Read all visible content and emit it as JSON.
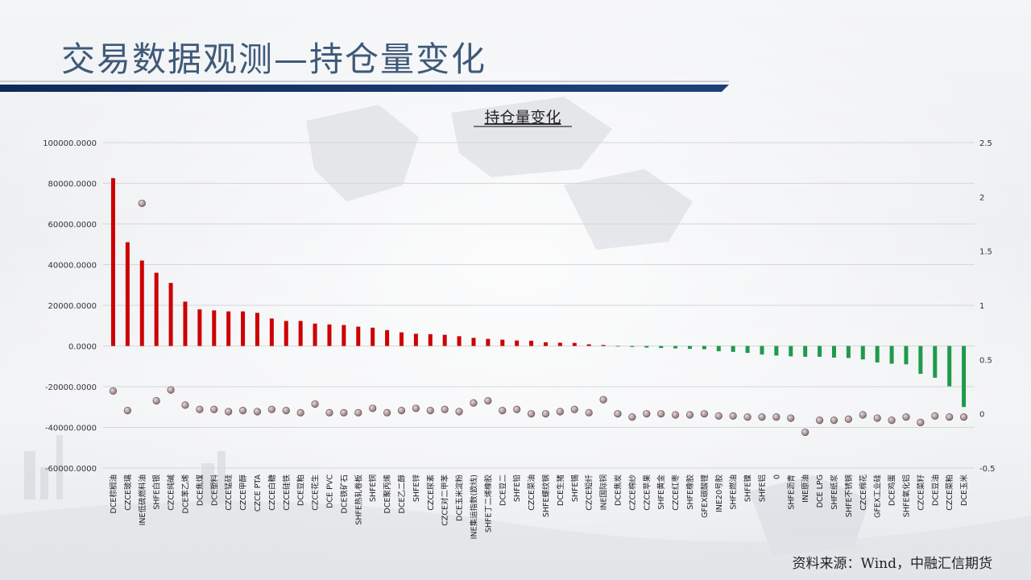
{
  "page": {
    "title": "交易数据观测—持仓量变化",
    "source": "资料来源：Wind，中融汇信期货"
  },
  "colors": {
    "positive_bar": "#cc0000",
    "negative_bar": "#1e9a4b",
    "dot": "#8c7576",
    "title_blue": "#3f5a78",
    "header_bar": "#13336a"
  },
  "chart_data": {
    "type": "bar",
    "title": "持仓量变化",
    "left_axis": {
      "min": -60000,
      "max": 100000,
      "step": 20000,
      "ticks": [
        "100000.0000",
        "80000.0000",
        "60000.0000",
        "40000.0000",
        "20000.0000",
        "0.0000",
        "-20000.0000",
        "-40000.0000",
        "-60000.0000"
      ]
    },
    "right_axis": {
      "min": -0.5,
      "max": 2.5,
      "step": 0.5,
      "ticks": [
        "2.5",
        "2",
        "1.5",
        "1",
        "0.5",
        "0",
        "-0.5"
      ]
    },
    "grid": true,
    "categories": [
      "DCE棕榈油",
      "CZCE玻璃",
      "INE低硫燃料油",
      "SHFE白银",
      "CZCE纯碱",
      "DCE苯乙烯",
      "DCE焦煤",
      "DCE塑料",
      "CZCE锰硅",
      "CZCE甲醇",
      "CZCE PTA",
      "CZCE白糖",
      "CZCE硅铁",
      "DCE豆粕",
      "CZCE花生",
      "DCE PVC",
      "DCE铁矿石",
      "SHFE热轧卷板",
      "SHFE铜",
      "DCE聚丙烯",
      "DCE乙二醇",
      "SHFE锌",
      "CZCE尿素",
      "CZCE对二甲苯",
      "DCE玉米淀粉",
      "INE集运指数(欧线)",
      "SHFE丁二烯橡胶",
      "DCE豆二",
      "SHFE铅",
      "CZCE菜油",
      "SHFE螺纹钢",
      "DCE生猪",
      "SHFE锡",
      "CZCE短纤",
      "INE国际铜",
      "DCE焦炭",
      "CZCE棉纱",
      "CZCE苹果",
      "SHFE黄金",
      "CZCE红枣",
      "SHFE橡胶",
      "GFEX碳酸锂",
      "INE20号胶",
      "SHFE燃油",
      "SHFE镍",
      "SHFE铝",
      "0",
      "SHFE沥青",
      "INE原油",
      "DCE LPG",
      "SHFE纸浆",
      "SHFE不锈钢",
      "CZCE棉花",
      "GFEX工业硅",
      "DCE鸡蛋",
      "SHFE氧化铝",
      "CZCE菜籽",
      "DCE豆油",
      "CZCE菜粕",
      "DCE玉米"
    ],
    "series": [
      {
        "name": "",
        "axis": "left",
        "type": "bar",
        "values": [
          82500,
          51000,
          42000,
          36000,
          31000,
          21800,
          18000,
          17500,
          17000,
          17000,
          16300,
          13500,
          12300,
          12300,
          11000,
          10600,
          10300,
          9500,
          9000,
          7800,
          6700,
          6000,
          5800,
          5500,
          4800,
          4000,
          3500,
          3100,
          2700,
          2600,
          1800,
          1600,
          1500,
          800,
          500,
          -300,
          -500,
          -800,
          -1000,
          -1200,
          -1400,
          -1600,
          -2600,
          -2900,
          -3400,
          -4200,
          -4700,
          -5100,
          -5300,
          -5300,
          -5700,
          -5900,
          -6600,
          -8100,
          -8700,
          -9000,
          -13700,
          -15600,
          -19800,
          -30000
        ]
      },
      {
        "name": "",
        "axis": "right",
        "type": "scatter",
        "values": [
          0.21,
          0.03,
          1.94,
          0.12,
          0.22,
          0.08,
          0.04,
          0.04,
          0.02,
          0.03,
          0.02,
          0.04,
          0.03,
          0.01,
          0.09,
          0.01,
          0.01,
          0.01,
          0.05,
          0.01,
          0.03,
          0.05,
          0.03,
          0.04,
          0.02,
          0.1,
          0.12,
          0.03,
          0.04,
          0.0,
          0.0,
          0.02,
          0.04,
          0.01,
          0.13,
          0.0,
          -0.03,
          0.0,
          0.0,
          -0.01,
          -0.01,
          0.0,
          -0.02,
          -0.02,
          -0.03,
          -0.03,
          -0.03,
          -0.04,
          -0.17,
          -0.06,
          -0.06,
          -0.05,
          -0.01,
          -0.04,
          -0.06,
          -0.03,
          -0.08,
          -0.02,
          -0.03,
          -0.03
        ]
      }
    ]
  }
}
